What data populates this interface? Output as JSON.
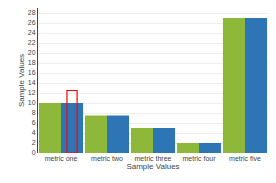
{
  "chart_data": {
    "type": "bar",
    "categories": [
      "metric one",
      "metric two",
      "metric three",
      "metric four",
      "metric five"
    ],
    "series": [
      {
        "color": "#8DB83A",
        "values": [
          10,
          7.5,
          5,
          2,
          27
        ]
      },
      {
        "color": "#2E75B6",
        "values": [
          10,
          7.5,
          5,
          2,
          27
        ]
      }
    ],
    "xlabel": "Sample Values",
    "ylabel": "Sample Values",
    "ylim": [
      0,
      29
    ],
    "yticks": [
      0,
      2,
      4,
      6,
      8,
      10,
      12,
      14,
      16,
      18,
      20,
      22,
      24,
      26,
      28
    ],
    "grid": true,
    "highlight": {
      "category": "metric one",
      "ylim": [
        0,
        12.5
      ],
      "color": "red"
    }
  }
}
